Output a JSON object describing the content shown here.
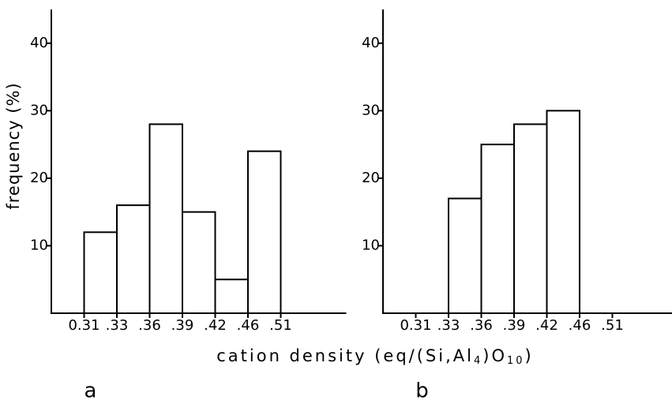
{
  "x_label": {
    "main": "cation density (eq/(Si,Al",
    "sub1": "4",
    "mid": ")O",
    "sub2": "10",
    "end": ")"
  },
  "chart_data": [
    {
      "type": "histogram",
      "panel_label": "a",
      "y_label": "frequency (%)",
      "bins": [
        "0.31",
        ".33",
        ".36",
        ".39",
        ".42",
        ".46",
        ".51"
      ],
      "values": [
        12,
        16,
        28,
        15,
        5,
        24
      ],
      "ylim": [
        0,
        45
      ],
      "yticks": [
        10,
        20,
        30,
        40
      ],
      "color": "#000000"
    },
    {
      "type": "histogram",
      "panel_label": "b",
      "bins": [
        "0.31",
        ".33",
        ".36",
        ".39",
        ".42",
        ".46",
        ".51"
      ],
      "values": [
        0,
        17,
        25,
        28,
        30,
        0
      ],
      "ylim": [
        0,
        45
      ],
      "yticks": [
        10,
        20,
        30,
        40
      ],
      "color": "#000000"
    }
  ]
}
